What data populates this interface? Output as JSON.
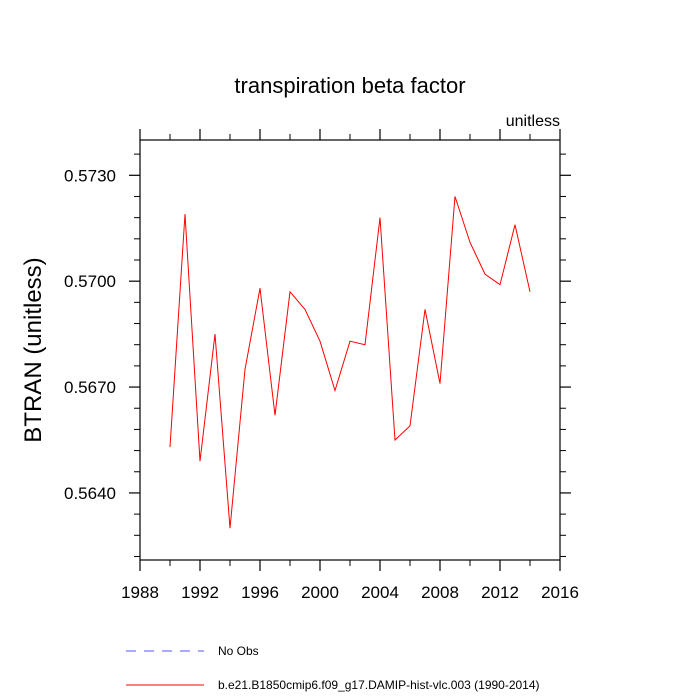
{
  "chart_data": {
    "type": "line",
    "title": "transpiration beta factor",
    "units_label": "unitless",
    "xlabel": "",
    "ylabel": "BTRAN  (unitless)",
    "xlim": [
      1988,
      2016
    ],
    "ylim": [
      0.5621,
      0.574
    ],
    "x_ticks": [
      1988,
      1992,
      1996,
      2000,
      2004,
      2008,
      2012,
      2016
    ],
    "y_ticks": [
      "0.5640",
      "0.5670",
      "0.5700",
      "0.5730"
    ],
    "x_minor_step": 2,
    "y_minor_step": 0.0006,
    "grid": false,
    "legend_position": "bottom-left",
    "series": [
      {
        "name": "b.e21.B1850cmip6.f09_g17.DAMIP-hist-vlc.003 (1990-2014)",
        "color": "#ff0000",
        "style": "solid",
        "x": [
          1990,
          1991,
          1992,
          1993,
          1994,
          1995,
          1996,
          1997,
          1998,
          1999,
          2000,
          2001,
          2002,
          2003,
          2004,
          2005,
          2006,
          2007,
          2008,
          2009,
          2010,
          2011,
          2012,
          2013,
          2014
        ],
        "values": [
          0.5653,
          0.5719,
          0.5649,
          0.5685,
          0.563,
          0.5675,
          0.5698,
          0.5662,
          0.5697,
          0.5692,
          0.5683,
          0.5669,
          0.5683,
          0.5682,
          0.5718,
          0.5655,
          0.5659,
          0.5692,
          0.5671,
          0.5724,
          0.5711,
          0.5702,
          0.5699,
          0.5716,
          0.5697
        ]
      }
    ]
  },
  "legend": [
    {
      "label": "No Obs",
      "color": "#5555ff",
      "style": "dashed"
    },
    {
      "label": "b.e21.B1850cmip6.f09_g17.DAMIP-hist-vlc.003 (1990-2014)",
      "color": "#ff0000",
      "style": "solid"
    }
  ]
}
